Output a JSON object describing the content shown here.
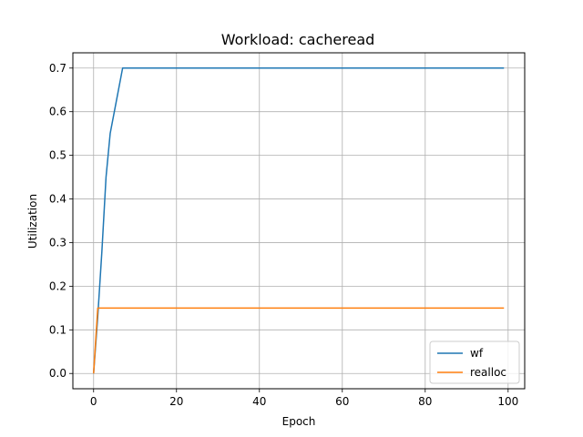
{
  "chart_data": {
    "type": "line",
    "title": "Workload: cacheread",
    "xlabel": "Epoch",
    "ylabel": "Utilization",
    "xlim": [
      -5,
      104
    ],
    "ylim": [
      -0.035,
      0.735
    ],
    "xticks": [
      0,
      20,
      40,
      60,
      80,
      100
    ],
    "yticks": [
      0.0,
      0.1,
      0.2,
      0.3,
      0.4,
      0.5,
      0.6,
      0.7
    ],
    "xtick_labels": [
      "0",
      "20",
      "40",
      "60",
      "80",
      "100"
    ],
    "ytick_labels": [
      "0.0",
      "0.1",
      "0.2",
      "0.3",
      "0.4",
      "0.5",
      "0.6",
      "0.7"
    ],
    "grid": true,
    "legend_position": "lower-right",
    "series": [
      {
        "name": "wf",
        "color": "#1f77b4",
        "x": [
          0,
          1,
          2,
          3,
          4,
          5,
          6,
          7,
          99
        ],
        "y": [
          0.0,
          0.13,
          0.28,
          0.45,
          0.55,
          0.6,
          0.65,
          0.7,
          0.7
        ]
      },
      {
        "name": "realloc",
        "color": "#ff7f0e",
        "x": [
          0,
          1,
          99
        ],
        "y": [
          0.0,
          0.15,
          0.15
        ]
      }
    ]
  }
}
